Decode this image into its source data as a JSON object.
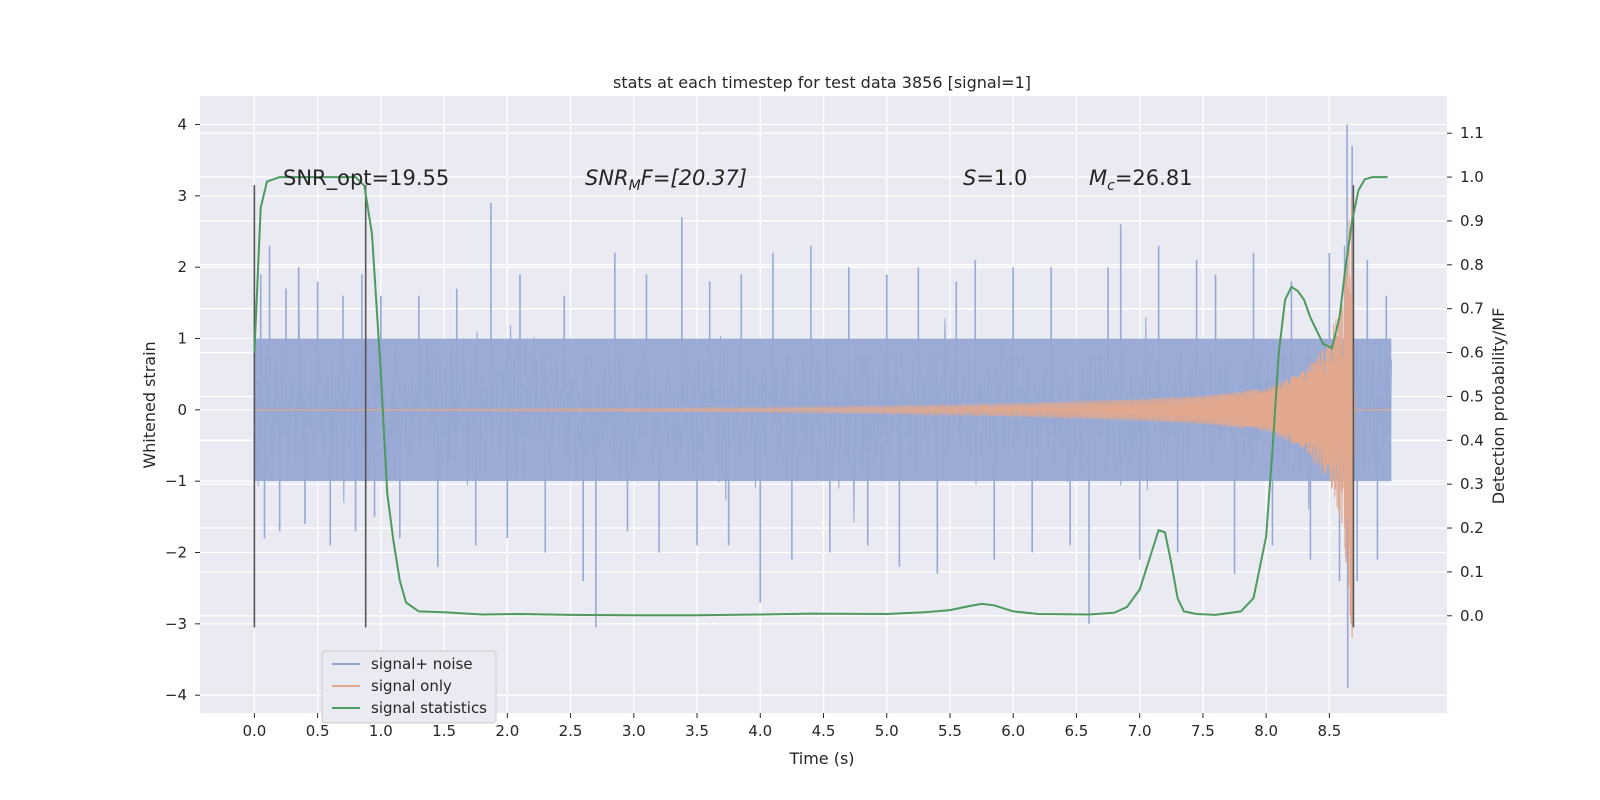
{
  "chart_data": {
    "type": "line",
    "title": "stats at each timestep for test data 3856 [signal=1]",
    "xlabel": "Time (s)",
    "ylabel": "Whitened strain",
    "y2label": "Detection probability/MF",
    "xlim": [
      -0.43,
      9.43
    ],
    "ylim": [
      -4.25,
      4.4
    ],
    "y2lim": [
      -0.2216,
      1.1848
    ],
    "x_ticks": [
      "0.0",
      "0.5",
      "1.0",
      "1.5",
      "2.0",
      "2.5",
      "3.0",
      "3.5",
      "4.0",
      "4.5",
      "5.0",
      "5.5",
      "6.0",
      "6.5",
      "7.0",
      "7.5",
      "8.0",
      "8.5"
    ],
    "y_ticks": [
      "4",
      "3",
      "2",
      "1",
      "0",
      "−1",
      "−2",
      "−3",
      "−4"
    ],
    "y2_ticks": [
      "1.1",
      "1.0",
      "0.9",
      "0.8",
      "0.7",
      "0.6",
      "0.5",
      "0.4",
      "0.3",
      "0.2",
      "0.1",
      "0.0"
    ],
    "grid": true,
    "legend_position": "lower-left",
    "annotations": {
      "snr_opt": "SNR_opt=19.55",
      "snr_mf_label": "SNR",
      "snr_mf_sub": "M",
      "snr_mf_tail": "F=[20.37]",
      "s_label": "S",
      "s_value": "=1.0",
      "mc_label": "M",
      "mc_sub": "c",
      "mc_value": "=26.81"
    },
    "series": [
      {
        "name": "signal+ noise",
        "color": "#97a8d3",
        "x_range": [
          0.0,
          8.99
        ],
        "band": [
          -1.0,
          1.0
        ],
        "spikes": [
          [
            0.05,
            1.9
          ],
          [
            0.08,
            -1.8
          ],
          [
            0.12,
            2.3
          ],
          [
            0.2,
            -1.7
          ],
          [
            0.25,
            1.7
          ],
          [
            0.35,
            2.0
          ],
          [
            0.4,
            -1.6
          ],
          [
            0.5,
            1.8
          ],
          [
            0.6,
            -1.9
          ],
          [
            0.7,
            1.6
          ],
          [
            0.8,
            -1.7
          ],
          [
            0.85,
            1.9
          ],
          [
            0.95,
            -1.5
          ],
          [
            1.0,
            1.6
          ],
          [
            1.15,
            -1.8
          ],
          [
            1.3,
            1.6
          ],
          [
            1.45,
            -2.2
          ],
          [
            1.6,
            1.7
          ],
          [
            1.75,
            -1.9
          ],
          [
            1.87,
            2.9
          ],
          [
            2.0,
            -1.8
          ],
          [
            2.1,
            1.9
          ],
          [
            2.3,
            -2.0
          ],
          [
            2.45,
            1.6
          ],
          [
            2.6,
            -2.4
          ],
          [
            2.7,
            -3.05
          ],
          [
            2.85,
            2.2
          ],
          [
            2.95,
            -1.7
          ],
          [
            3.1,
            1.9
          ],
          [
            3.2,
            -2.0
          ],
          [
            3.38,
            2.7
          ],
          [
            3.5,
            -1.9
          ],
          [
            3.6,
            1.8
          ],
          [
            3.75,
            -1.9
          ],
          [
            3.85,
            1.9
          ],
          [
            4.0,
            -2.7
          ],
          [
            4.1,
            2.2
          ],
          [
            4.25,
            -2.1
          ],
          [
            4.4,
            2.3
          ],
          [
            4.55,
            -2.0
          ],
          [
            4.7,
            2.0
          ],
          [
            4.85,
            -1.9
          ],
          [
            5.0,
            1.9
          ],
          [
            5.1,
            -2.2
          ],
          [
            5.25,
            2.0
          ],
          [
            5.4,
            -2.3
          ],
          [
            5.55,
            1.8
          ],
          [
            5.7,
            2.1
          ],
          [
            5.85,
            -2.1
          ],
          [
            6.0,
            2.0
          ],
          [
            6.15,
            -2.0
          ],
          [
            6.3,
            2.0
          ],
          [
            6.45,
            -1.9
          ],
          [
            6.6,
            -3.0
          ],
          [
            6.75,
            2.0
          ],
          [
            6.85,
            2.6
          ],
          [
            7.0,
            -2.1
          ],
          [
            7.15,
            2.3
          ],
          [
            7.3,
            -2.0
          ],
          [
            7.45,
            2.1
          ],
          [
            7.6,
            1.9
          ],
          [
            7.75,
            -2.3
          ],
          [
            7.9,
            2.2
          ],
          [
            8.05,
            -1.9
          ],
          [
            8.2,
            1.8
          ],
          [
            8.35,
            -2.1
          ],
          [
            8.5,
            2.2
          ],
          [
            8.58,
            -2.4
          ],
          [
            8.62,
            2.3
          ],
          [
            8.64,
            4.0
          ],
          [
            8.645,
            -3.9
          ],
          [
            8.68,
            3.7
          ],
          [
            8.72,
            -2.4
          ],
          [
            8.8,
            2.1
          ],
          [
            8.88,
            -2.1
          ],
          [
            8.95,
            1.6
          ]
        ]
      },
      {
        "name": "signal only",
        "color": "#e1a88e",
        "x_range": [
          0.0,
          8.99
        ],
        "envelope": [
          [
            0.0,
            0.0
          ],
          [
            4.0,
            0.03
          ],
          [
            5.0,
            0.05
          ],
          [
            6.0,
            0.09
          ],
          [
            7.0,
            0.15
          ],
          [
            7.5,
            0.2
          ],
          [
            8.0,
            0.3
          ],
          [
            8.3,
            0.55
          ],
          [
            8.5,
            1.0
          ],
          [
            8.6,
            1.6
          ],
          [
            8.65,
            2.6
          ],
          [
            8.68,
            3.2
          ],
          [
            8.7,
            0.0
          ]
        ]
      },
      {
        "name": "signal statistics",
        "color": "#4c9a5e",
        "x": [
          0.0,
          0.05,
          0.1,
          0.15,
          0.2,
          0.3,
          0.4,
          0.5,
          0.6,
          0.7,
          0.8,
          0.87,
          0.93,
          1.0,
          1.05,
          1.1,
          1.15,
          1.2,
          1.3,
          1.5,
          1.8,
          2.1,
          2.5,
          3.0,
          3.5,
          4.0,
          4.4,
          5.0,
          5.3,
          5.5,
          5.65,
          5.75,
          5.85,
          6.0,
          6.2,
          6.6,
          6.8,
          6.9,
          7.0,
          7.1,
          7.15,
          7.2,
          7.25,
          7.3,
          7.35,
          7.45,
          7.6,
          7.8,
          7.9,
          8.0,
          8.05,
          8.1,
          8.15,
          8.2,
          8.25,
          8.3,
          8.35,
          8.45,
          8.52,
          8.58,
          8.63,
          8.68,
          8.73,
          8.78,
          8.84,
          8.9,
          8.96
        ],
        "values": [
          0.6,
          0.93,
          0.99,
          0.995,
          1.0,
          1.0,
          1.0,
          1.0,
          1.0,
          1.0,
          1.0,
          0.98,
          0.87,
          0.55,
          0.28,
          0.17,
          0.08,
          0.03,
          0.01,
          0.008,
          0.003,
          0.004,
          0.002,
          0.001,
          0.001,
          0.003,
          0.005,
          0.004,
          0.008,
          0.013,
          0.022,
          0.027,
          0.024,
          0.01,
          0.004,
          0.003,
          0.007,
          0.02,
          0.06,
          0.15,
          0.195,
          0.19,
          0.12,
          0.04,
          0.01,
          0.004,
          0.002,
          0.01,
          0.04,
          0.18,
          0.38,
          0.6,
          0.72,
          0.75,
          0.74,
          0.72,
          0.68,
          0.62,
          0.61,
          0.68,
          0.8,
          0.9,
          0.97,
          0.995,
          1.0,
          1.0,
          1.0
        ]
      }
    ],
    "vertical_markers": [
      {
        "x": 0.0,
        "y_from": -3.05,
        "y_to": 3.15
      },
      {
        "x": 0.88,
        "y_from": -3.05,
        "y_to": 3.15
      },
      {
        "x": 8.69,
        "y_from": -3.05,
        "y_to": 3.15
      }
    ]
  }
}
